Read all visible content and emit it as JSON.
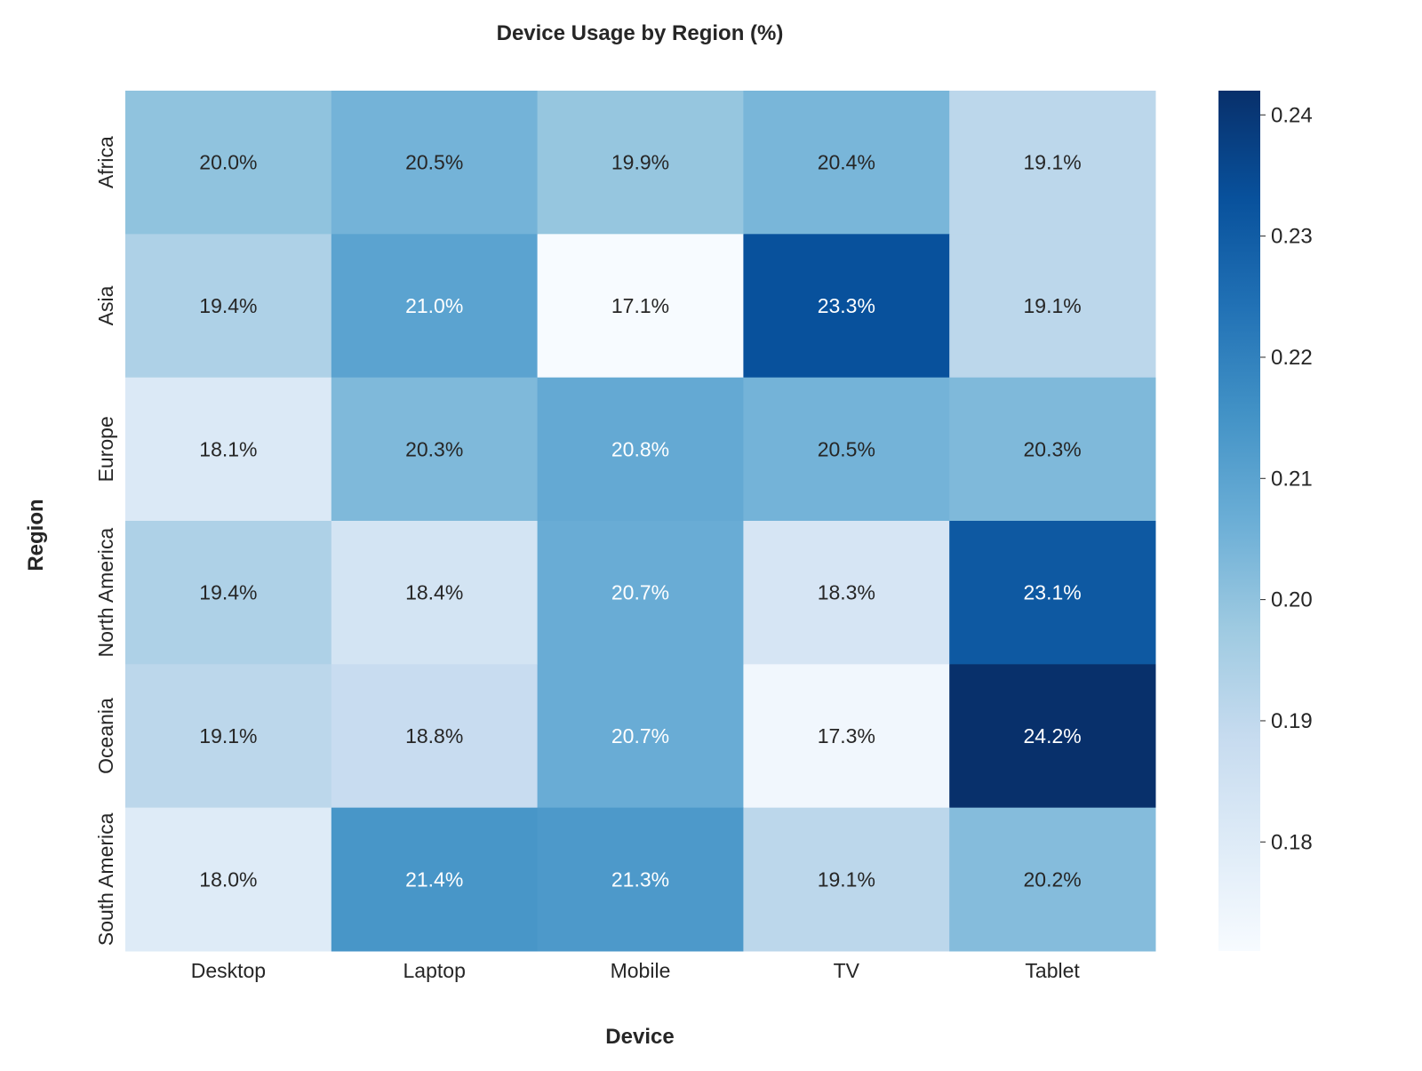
{
  "chart_data": {
    "type": "heatmap",
    "title": "Device Usage by Region (%)",
    "xlabel": "Device",
    "ylabel": "Region",
    "x_categories": [
      "Desktop",
      "Laptop",
      "Mobile",
      "TV",
      "Tablet"
    ],
    "y_categories": [
      "Africa",
      "Asia",
      "Europe",
      "North America",
      "Oceania",
      "South America"
    ],
    "values": [
      [
        0.2,
        0.205,
        0.199,
        0.204,
        0.191
      ],
      [
        0.194,
        0.21,
        0.171,
        0.233,
        0.191
      ],
      [
        0.181,
        0.203,
        0.208,
        0.205,
        0.203
      ],
      [
        0.194,
        0.184,
        0.207,
        0.183,
        0.231
      ],
      [
        0.191,
        0.188,
        0.207,
        0.173,
        0.242
      ],
      [
        0.18,
        0.214,
        0.213,
        0.191,
        0.202
      ]
    ],
    "cell_labels": [
      [
        "20.0%",
        "20.5%",
        "19.9%",
        "20.4%",
        "19.1%"
      ],
      [
        "19.4%",
        "21.0%",
        "17.1%",
        "23.3%",
        "19.1%"
      ],
      [
        "18.1%",
        "20.3%",
        "20.8%",
        "20.5%",
        "20.3%"
      ],
      [
        "19.4%",
        "18.4%",
        "20.7%",
        "18.3%",
        "23.1%"
      ],
      [
        "19.1%",
        "18.8%",
        "20.7%",
        "17.3%",
        "24.2%"
      ],
      [
        "18.0%",
        "21.4%",
        "21.3%",
        "19.1%",
        "20.2%"
      ]
    ],
    "colorbar": {
      "colormap": "Blues",
      "vmin": 0.171,
      "vmax": 0.242,
      "ticks": [
        0.18,
        0.19,
        0.2,
        0.21,
        0.22,
        0.23,
        0.24
      ],
      "tick_labels": [
        "0.18",
        "0.19",
        "0.20",
        "0.21",
        "0.22",
        "0.23",
        "0.24"
      ]
    },
    "grid": false,
    "legend": "colorbar-right"
  }
}
